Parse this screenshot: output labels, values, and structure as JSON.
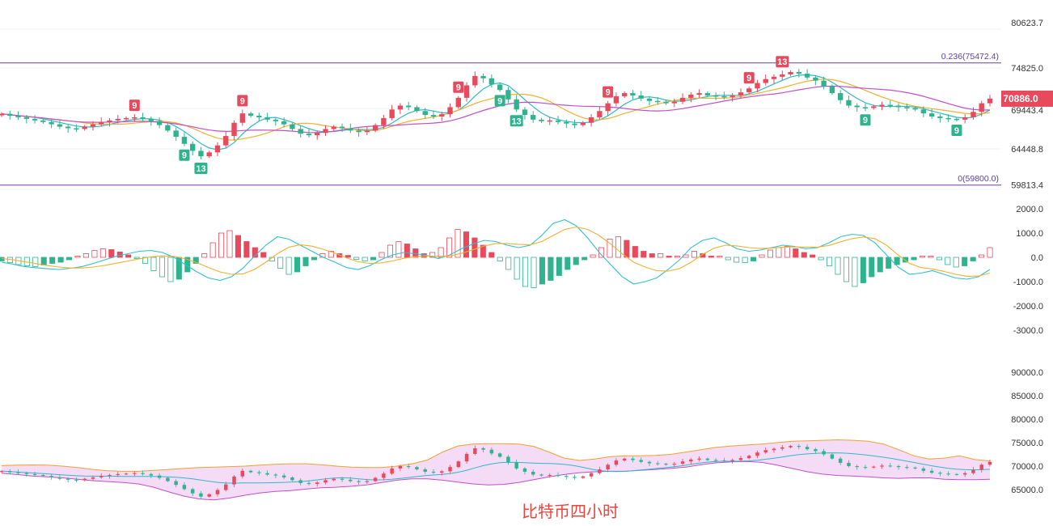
{
  "caption": "比特币四小时",
  "colors": {
    "up": "#e8495c",
    "down": "#2fb38f",
    "fib_line": "#6a3ea1",
    "ma_short": "#30b8c8",
    "ma_mid": "#f0b030",
    "ma_long": "#c04fc8",
    "bb_fill": "#f4dcf6",
    "bb_upper": "#f0a030",
    "bb_lower": "#c04fc8",
    "bb_mid": "#30b8c8",
    "macd_dif": "#30c0d0",
    "macd_dea": "#f0b030",
    "price_tag": "#e8495c"
  },
  "chart_data": [
    {
      "type": "candlestick",
      "panel": "price",
      "y_tick_labels": [
        "80623.7",
        "74825.0",
        "69443.4",
        "64448.8",
        "59813.4"
      ],
      "y_ticks": [
        80623.7,
        74825.0,
        69443.4,
        64448.8,
        59813.4
      ],
      "current_price": 70886.0,
      "current_price_label": "70886.0",
      "fib_levels": [
        {
          "label": "0.236(75472.4)",
          "value": 75472.4
        },
        {
          "label": "0(59800.0)",
          "value": 59800.0
        }
      ],
      "close_series": [
        68950,
        68700,
        68500,
        68300,
        68100,
        67900,
        67600,
        67300,
        67100,
        67000,
        67300,
        67600,
        67900,
        68100,
        68300,
        68400,
        68500,
        68300,
        68000,
        67500,
        66800,
        66000,
        65100,
        64200,
        63500,
        64000,
        64900,
        66100,
        67800,
        69000,
        68700,
        68500,
        68200,
        68000,
        67600,
        67000,
        66400,
        66200,
        66500,
        67000,
        67300,
        67100,
        66800,
        66600,
        66800,
        67500,
        68400,
        69500,
        70000,
        69800,
        69300,
        68800,
        68600,
        68900,
        69800,
        71000,
        72600,
        73800,
        73500,
        72700,
        72000,
        70800,
        69500,
        68800,
        68200,
        68000,
        68100,
        67900,
        67700,
        67500,
        67800,
        68500,
        69300,
        70300,
        71200,
        71600,
        71300,
        70900,
        70600,
        70500,
        70300,
        70500,
        71000,
        71400,
        71600,
        71300,
        71200,
        71100,
        71300,
        71700,
        72200,
        72900,
        73400,
        73700,
        74000,
        74300,
        74100,
        73600,
        73200,
        72500,
        71600,
        70700,
        70000,
        69800,
        69700,
        69900,
        70100,
        70000,
        69800,
        69700,
        69500,
        69000,
        68600,
        68400,
        68300,
        68200,
        68500,
        69200,
        70300,
        70900
      ],
      "td_sequential_marks": [
        {
          "label": "9",
          "direction": "sell"
        },
        {
          "label": "9",
          "direction": "buy"
        },
        {
          "label": "13",
          "direction": "buy"
        },
        {
          "label": "9",
          "direction": "sell"
        },
        {
          "label": "9",
          "direction": "sell"
        },
        {
          "label": "9",
          "direction": "buy"
        },
        {
          "label": "13",
          "direction": "buy"
        },
        {
          "label": "9",
          "direction": "sell"
        },
        {
          "label": "9",
          "direction": "sell"
        },
        {
          "label": "13",
          "direction": "sell"
        },
        {
          "label": "9",
          "direction": "buy"
        },
        {
          "label": "9",
          "direction": "buy"
        }
      ]
    },
    {
      "type": "macd",
      "panel": "macd",
      "y_tick_labels": [
        "2000.0",
        "1000.0",
        "0.0",
        "-1000.0",
        "-2000.0",
        "-3000.0"
      ],
      "y_ticks": [
        2000,
        1000,
        0,
        -1000,
        -2000,
        -3000
      ],
      "histogram": [
        -150,
        -220,
        -300,
        -350,
        -380,
        -320,
        -250,
        -200,
        -100,
        50,
        150,
        280,
        350,
        320,
        220,
        100,
        -50,
        -250,
        -550,
        -800,
        -1000,
        -900,
        -600,
        -250,
        150,
        600,
        1000,
        1100,
        900,
        650,
        400,
        200,
        -150,
        -450,
        -700,
        -600,
        -350,
        -100,
        150,
        250,
        150,
        80,
        -80,
        -150,
        -100,
        200,
        500,
        650,
        550,
        350,
        150,
        200,
        400,
        800,
        1150,
        1050,
        800,
        500,
        200,
        -150,
        -500,
        -900,
        -1200,
        -1250,
        -1100,
        -950,
        -750,
        -500,
        -300,
        -100,
        100,
        400,
        750,
        850,
        700,
        450,
        250,
        150,
        150,
        50,
        50,
        100,
        250,
        150,
        50,
        50,
        -100,
        -200,
        -220,
        -150,
        100,
        300,
        400,
        450,
        350,
        200,
        100,
        -100,
        -350,
        -700,
        -1000,
        -1200,
        -1050,
        -800,
        -600,
        -450,
        -300,
        -200,
        -100,
        50,
        50,
        -100,
        -300,
        -400,
        -350,
        -150,
        100,
        400
      ],
      "dif": [
        -200,
        -280,
        -380,
        -430,
        -470,
        -500,
        -450,
        -380,
        -250,
        -100,
        50,
        150,
        250,
        280,
        200,
        0,
        -300,
        -600,
        -850,
        -950,
        -800,
        -450,
        50,
        500,
        850,
        750,
        500,
        250,
        0,
        -200,
        -420,
        -500,
        -350,
        -100,
        100,
        200,
        150,
        80,
        -50,
        100,
        350,
        550,
        700,
        650,
        500,
        400,
        500,
        900,
        1400,
        1550,
        1300,
        800,
        200,
        -300,
        -800,
        -1100,
        -1000,
        -850,
        -500,
        -100,
        400,
        700,
        800,
        600,
        350,
        250,
        300,
        400,
        500,
        450,
        350,
        400,
        600,
        850,
        950,
        900,
        600,
        100,
        -400,
        -700,
        -650,
        -550,
        -700,
        -850,
        -900,
        -800,
        -500
      ],
      "dea": [
        -50,
        -100,
        -180,
        -260,
        -340,
        -400,
        -440,
        -440,
        -400,
        -330,
        -240,
        -150,
        -60,
        20,
        60,
        40,
        -60,
        -220,
        -420,
        -600,
        -700,
        -680,
        -500,
        -200,
        150,
        420,
        520,
        460,
        330,
        170,
        -20,
        -180,
        -250,
        -230,
        -150,
        -40,
        30,
        60,
        40,
        60,
        160,
        310,
        470,
        570,
        570,
        530,
        520,
        650,
        900,
        1150,
        1250,
        1150,
        900,
        550,
        150,
        -200,
        -400,
        -550,
        -570,
        -460,
        -200,
        120,
        380,
        500,
        470,
        400,
        370,
        380,
        420,
        430,
        420,
        420,
        490,
        640,
        770,
        840,
        770,
        500,
        100,
        -250,
        -420,
        -480,
        -580,
        -700,
        -780,
        -770,
        -650
      ]
    },
    {
      "type": "bollinger",
      "panel": "boll",
      "y_tick_labels": [
        "90000.0",
        "85000.0",
        "80000.0",
        "75000.0",
        "70000.0",
        "65000.0"
      ],
      "y_ticks": [
        90000,
        85000,
        80000,
        75000,
        70000,
        65000
      ],
      "upper": [
        70100,
        70200,
        70250,
        70200,
        70000,
        69700,
        69300,
        69000,
        68900,
        68900,
        69100,
        69300,
        69500,
        69700,
        69800,
        69900,
        70000,
        70200,
        70400,
        70500,
        70500,
        70300,
        70000,
        69800,
        69700,
        69700,
        70000,
        70500,
        71300,
        73000,
        74300,
        74700,
        74800,
        74800,
        74700,
        74200,
        73000,
        71700,
        71200,
        71500,
        72000,
        72200,
        72200,
        72300,
        72500,
        73000,
        73500,
        74000,
        74300,
        74500,
        74700,
        75000,
        75300,
        75400,
        75500,
        75600,
        75500,
        75300,
        74700,
        73500,
        72200,
        71500,
        71700,
        72200,
        71400,
        71100
      ],
      "lower": [
        68500,
        68200,
        67900,
        67700,
        67500,
        67200,
        66900,
        66700,
        66500,
        66200,
        65500,
        64500,
        63600,
        63000,
        62800,
        63200,
        63800,
        64300,
        64600,
        64800,
        65100,
        65400,
        65500,
        65700,
        66000,
        66500,
        67000,
        67300,
        67300,
        67000,
        66600,
        66200,
        66000,
        66100,
        66500,
        67100,
        67700,
        68200,
        68600,
        68800,
        68900,
        68900,
        69100,
        69300,
        69500,
        69800,
        70300,
        70700,
        70900,
        71000,
        70800,
        70200,
        69500,
        68800,
        68300,
        68000,
        67900,
        67700,
        67500,
        67400,
        67500,
        67500,
        67200,
        67100,
        67100,
        67200
      ]
    }
  ]
}
